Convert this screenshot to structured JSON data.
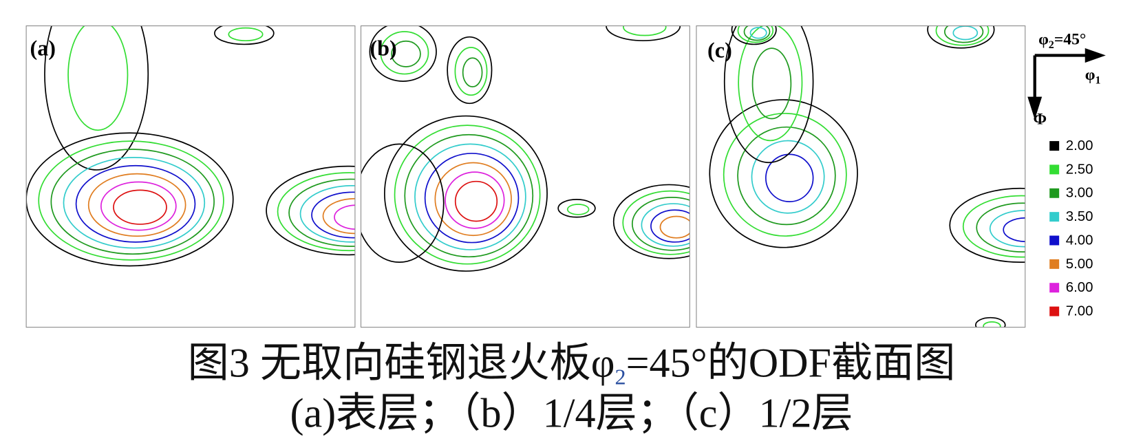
{
  "panels": [
    {
      "label": "(a)"
    },
    {
      "label": "(b)"
    },
    {
      "label": "(c)"
    }
  ],
  "axis_key": {
    "section": {
      "symbol": "φ",
      "subscript": "2",
      "rest": "=45°"
    },
    "horizontal": {
      "symbol": "φ",
      "subscript": "1"
    },
    "vertical": "Φ"
  },
  "legend": [
    {
      "label": "2.00",
      "color": "#000000"
    },
    {
      "label": "2.50",
      "color": "#33dd33"
    },
    {
      "label": "3.00",
      "color": "#1f9a1f"
    },
    {
      "label": "3.50",
      "color": "#33cccc"
    },
    {
      "label": "4.00",
      "color": "#1010cc"
    },
    {
      "label": "5.00",
      "color": "#e07d20"
    },
    {
      "label": "6.00",
      "color": "#dd22dd"
    },
    {
      "label": "7.00",
      "color": "#dd1111"
    }
  ],
  "caption": {
    "line1_prefix": "图3 无取向硅钢退火板",
    "line1_symbol": "φ",
    "line1_subscript": "2",
    "line1_suffix": "=45°的ODF截面图",
    "line2": "(a)表层；（b）1/4层；（c）1/2层"
  }
}
